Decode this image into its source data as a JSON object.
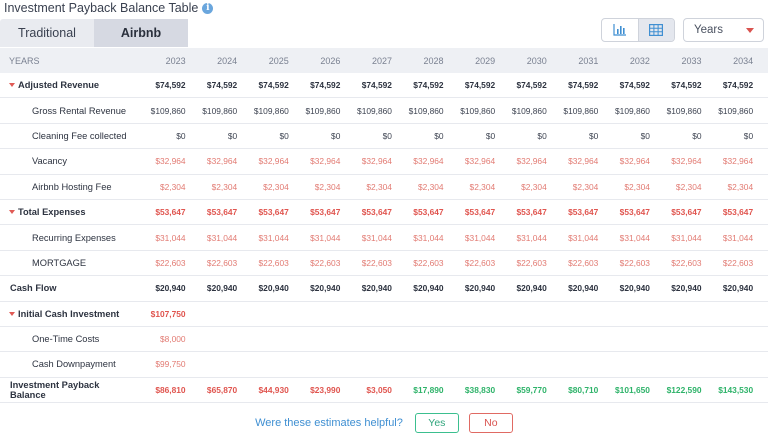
{
  "header": {
    "title": "Investment Payback Balance Table",
    "info_icon": "info-icon"
  },
  "tabs": [
    {
      "label": "Traditional",
      "active": false
    },
    {
      "label": "Airbnb",
      "active": true
    }
  ],
  "view_toggle": {
    "options": [
      "bar-chart-icon",
      "table-icon"
    ],
    "active": "table-icon"
  },
  "period_select": {
    "value": "Years"
  },
  "table": {
    "header_label": "YEARS",
    "years": [
      "2023",
      "2024",
      "2025",
      "2026",
      "2027",
      "2028",
      "2029",
      "2030",
      "2031",
      "2032",
      "2033",
      "2034"
    ],
    "rows": [
      {
        "label": "Adjusted Revenue",
        "kind": "group",
        "values": [
          "$74,592",
          "$74,592",
          "$74,592",
          "$74,592",
          "$74,592",
          "$74,592",
          "$74,592",
          "$74,592",
          "$74,592",
          "$74,592",
          "$74,592",
          "$74,592"
        ]
      },
      {
        "label": "Gross Rental Revenue",
        "kind": "sub",
        "values": [
          "$109,860",
          "$109,860",
          "$109,860",
          "$109,860",
          "$109,860",
          "$109,860",
          "$109,860",
          "$109,860",
          "$109,860",
          "$109,860",
          "$109,860",
          "$109,860"
        ]
      },
      {
        "label": "Cleaning Fee collected",
        "kind": "sub",
        "values": [
          "$0",
          "$0",
          "$0",
          "$0",
          "$0",
          "$0",
          "$0",
          "$0",
          "$0",
          "$0",
          "$0",
          "$0"
        ]
      },
      {
        "label": "Vacancy",
        "kind": "sub-red",
        "values": [
          "$32,964",
          "$32,964",
          "$32,964",
          "$32,964",
          "$32,964",
          "$32,964",
          "$32,964",
          "$32,964",
          "$32,964",
          "$32,964",
          "$32,964",
          "$32,964"
        ]
      },
      {
        "label": "Airbnb Hosting Fee",
        "kind": "sub-red",
        "values": [
          "$2,304",
          "$2,304",
          "$2,304",
          "$2,304",
          "$2,304",
          "$2,304",
          "$2,304",
          "$2,304",
          "$2,304",
          "$2,304",
          "$2,304",
          "$2,304"
        ]
      },
      {
        "label": "Total Expenses",
        "kind": "group-red",
        "values": [
          "$53,647",
          "$53,647",
          "$53,647",
          "$53,647",
          "$53,647",
          "$53,647",
          "$53,647",
          "$53,647",
          "$53,647",
          "$53,647",
          "$53,647",
          "$53,647"
        ]
      },
      {
        "label": "Recurring Expenses",
        "kind": "sub-red",
        "values": [
          "$31,044",
          "$31,044",
          "$31,044",
          "$31,044",
          "$31,044",
          "$31,044",
          "$31,044",
          "$31,044",
          "$31,044",
          "$31,044",
          "$31,044",
          "$31,044"
        ]
      },
      {
        "label": "MORTGAGE",
        "kind": "sub-red",
        "values": [
          "$22,603",
          "$22,603",
          "$22,603",
          "$22,603",
          "$22,603",
          "$22,603",
          "$22,603",
          "$22,603",
          "$22,603",
          "$22,603",
          "$22,603",
          "$22,603"
        ]
      },
      {
        "label": "Cash Flow",
        "kind": "plain",
        "values": [
          "$20,940",
          "$20,940",
          "$20,940",
          "$20,940",
          "$20,940",
          "$20,940",
          "$20,940",
          "$20,940",
          "$20,940",
          "$20,940",
          "$20,940",
          "$20,940"
        ]
      },
      {
        "label": "Initial Cash Investment",
        "kind": "group-red",
        "values": [
          "$107,750",
          "",
          "",
          "",
          "",
          "",
          "",
          "",
          "",
          "",
          "",
          ""
        ]
      },
      {
        "label": "One-Time Costs",
        "kind": "sub-red",
        "values": [
          "$8,000",
          "",
          "",
          "",
          "",
          "",
          "",
          "",
          "",
          "",
          "",
          ""
        ]
      },
      {
        "label": "Cash Downpayment",
        "kind": "sub-red",
        "values": [
          "$99,750",
          "",
          "",
          "",
          "",
          "",
          "",
          "",
          "",
          "",
          "",
          ""
        ]
      },
      {
        "label": "Investment Payback Balance",
        "kind": "balance",
        "values": [
          "$86,810",
          "$65,870",
          "$44,930",
          "$23,990",
          "$3,050",
          "$17,890",
          "$38,830",
          "$59,770",
          "$80,710",
          "$101,650",
          "$122,590",
          "$143,530"
        ],
        "colors": [
          "red",
          "red",
          "red",
          "red",
          "red",
          "green",
          "green",
          "green",
          "green",
          "green",
          "green",
          "green"
        ]
      }
    ]
  },
  "feedback": {
    "question": "Were these estimates helpful?",
    "yes_label": "Yes",
    "no_label": "No"
  },
  "colors": {
    "negative": "#e0554f",
    "positive": "#2fb36a",
    "accent": "#3f8fd2"
  }
}
